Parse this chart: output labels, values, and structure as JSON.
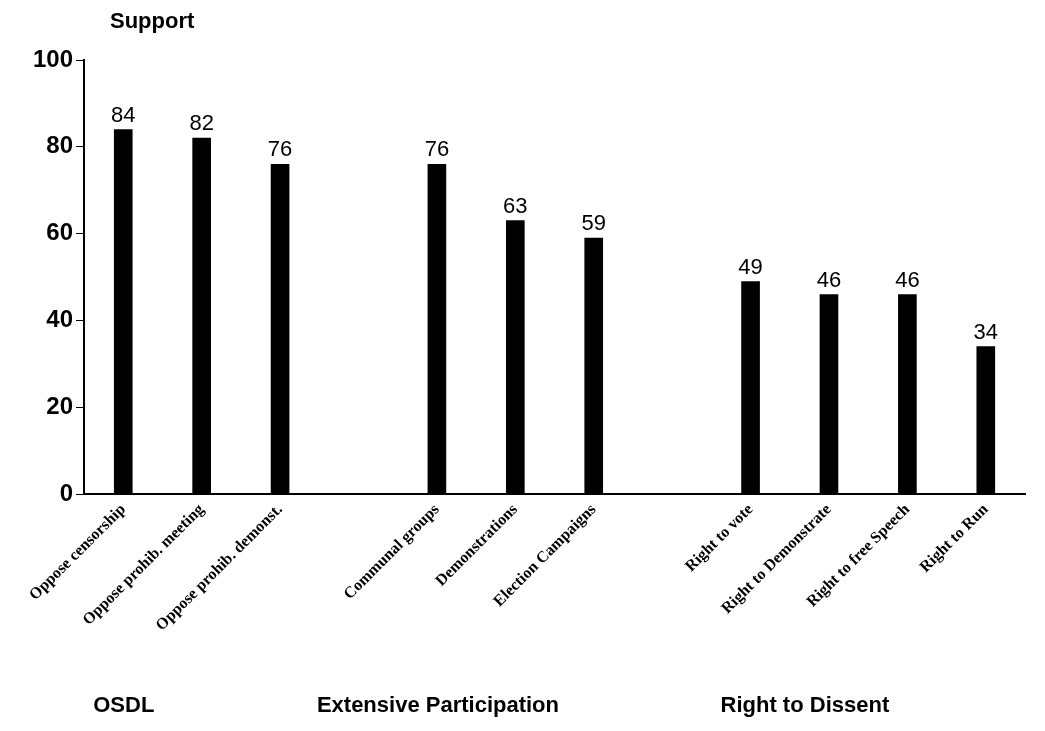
{
  "chart_data": {
    "type": "bar",
    "ylabel": "Support",
    "categories": [
      "Oppose censorship",
      "Oppose prohib. meeting",
      "Oppose prohib. demonst.",
      null,
      "Communal groups",
      "Demonstrations",
      "Election Campaigns",
      null,
      "Right to vote",
      "Right to Demonstrate",
      "Right to free Speech",
      "Right to Run"
    ],
    "values": [
      84,
      82,
      76,
      null,
      76,
      63,
      59,
      null,
      49,
      46,
      46,
      34
    ],
    "color": "#000000",
    "ylim": [
      0,
      100
    ],
    "yticks": [
      0,
      20,
      40,
      60,
      80,
      100
    ],
    "grid": false,
    "legend": false,
    "data_labels": true,
    "annotations": [
      "OSDL",
      "Extensive Participation",
      "Right to Dissent"
    ]
  }
}
